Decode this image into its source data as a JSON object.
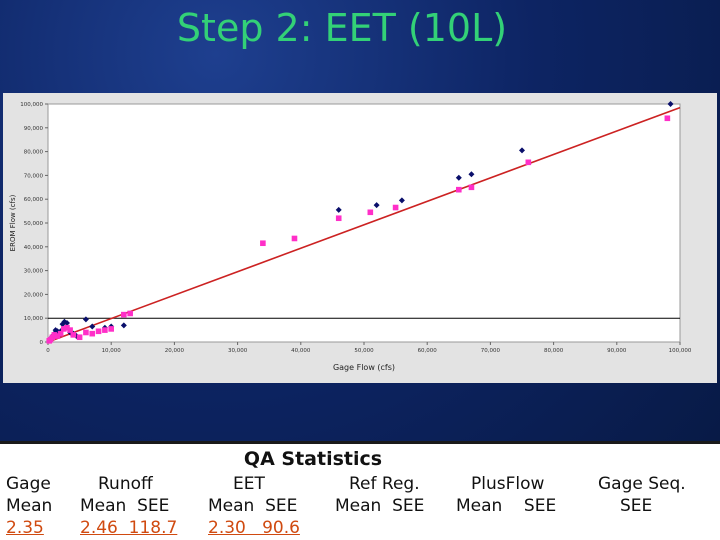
{
  "slide": {
    "title": "Step 2: EET (10L)"
  },
  "chart_data": {
    "type": "scatter",
    "xlabel": "Gage Flow (cfs)",
    "ylabel": "EROM Flow (cfs)",
    "xlim": [
      0,
      100000
    ],
    "ylim": [
      0,
      100000
    ],
    "xticks": [
      "0",
      "10,000",
      "20,000",
      "30,000",
      "40,000",
      "50,000",
      "60,000",
      "70,000",
      "80,000",
      "90,000",
      "100,000"
    ],
    "yticks": [
      "0",
      "10,000",
      "20,000",
      "30,000",
      "40,000",
      "50,000",
      "60,000",
      "70,000",
      "80,000",
      "90,000",
      "100,000"
    ],
    "grid": false,
    "reference_line": {
      "y": 10000,
      "color": "#000000"
    },
    "fit_line": {
      "x": [
        0,
        100000
      ],
      "y": [
        0,
        98500
      ],
      "color": "#cc2222"
    },
    "series": [
      {
        "marker": "diamond",
        "color": "#0a0f6b",
        "x": [
          200,
          400,
          700,
          1000,
          1200,
          1500,
          1800,
          2000,
          2300,
          2600,
          3000,
          3500,
          4000,
          4500,
          6000,
          7000,
          9000,
          10000,
          12000,
          46000,
          52000,
          56000,
          65000,
          67000,
          75000,
          98500
        ],
        "y": [
          800,
          1500,
          2500,
          3500,
          5000,
          4500,
          3000,
          4500,
          7500,
          8500,
          8000,
          4000,
          3500,
          2500,
          9500,
          6500,
          6000,
          6500,
          7000,
          55500,
          57500,
          59500,
          69000,
          70500,
          80500,
          100000
        ]
      },
      {
        "marker": "square",
        "color": "#ff2fc8",
        "x": [
          200,
          400,
          700,
          1000,
          1500,
          2000,
          2500,
          3000,
          3500,
          4000,
          5000,
          6000,
          7000,
          8000,
          9000,
          10000,
          12000,
          13000,
          34000,
          39000,
          46000,
          51000,
          55000,
          65000,
          67000,
          76000,
          98000
        ],
        "y": [
          500,
          1000,
          2000,
          3000,
          2500,
          3500,
          5500,
          6000,
          5000,
          3000,
          2000,
          4000,
          3500,
          4500,
          5000,
          5500,
          11500,
          12000,
          41500,
          43500,
          52000,
          54500,
          56500,
          64000,
          65000,
          75500,
          94000
        ]
      }
    ]
  },
  "qa": {
    "title": "QA Statistics",
    "gage": {
      "h1": "Gage",
      "h2": "Mean",
      "v": "2.35"
    },
    "runoff": {
      "h1": "Runoff",
      "h2": "Mean  SEE",
      "v": "2.46  118.7"
    },
    "eet": {
      "h1": "EET",
      "h2": "Mean  SEE",
      "v": "2.30   90.6"
    },
    "refreg": {
      "h1": "Ref Reg.",
      "h2": "Mean  SEE"
    },
    "plusflow": {
      "h1": "PlusFlow",
      "h2": "Mean    SEE"
    },
    "gageseq": {
      "h1": "Gage Seq.",
      "h2": "SEE"
    }
  }
}
